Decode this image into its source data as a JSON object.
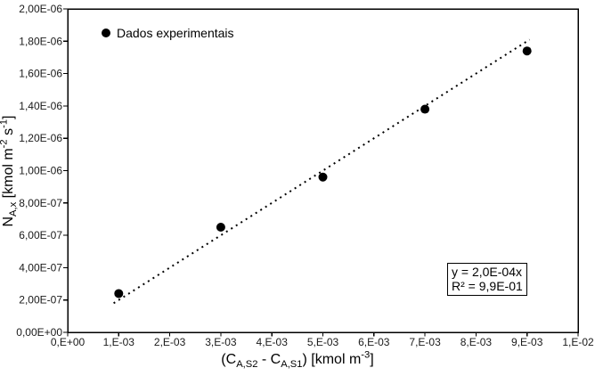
{
  "chart_data": {
    "type": "scatter",
    "title": "",
    "grid": false,
    "legend_position": "top-left-inside",
    "xlim": [
      0,
      0.01
    ],
    "ylim": [
      0,
      2e-06
    ],
    "x_tick_values": [
      0,
      0.001,
      0.002,
      0.003,
      0.004,
      0.005,
      0.006,
      0.007,
      0.008,
      0.009,
      0.01
    ],
    "x_tick_labels": [
      "0,E+00",
      "1,E-03",
      "2,E-03",
      "3,E-03",
      "4,E-03",
      "5,E-03",
      "6,E-03",
      "7,E-03",
      "8,E-03",
      "9,E-03",
      "1,E-02"
    ],
    "y_tick_values": [
      0,
      2e-07,
      4e-07,
      6e-07,
      8e-07,
      1e-06,
      1.2e-06,
      1.4e-06,
      1.6e-06,
      1.8e-06,
      2e-06
    ],
    "y_tick_labels": [
      "0,00E+00",
      "2,00E-07",
      "4,00E-07",
      "6,00E-07",
      "8,00E-07",
      "1,00E-06",
      "1,20E-06",
      "1,40E-06",
      "1,60E-06",
      "1,80E-06",
      "2,00E-06"
    ],
    "series": [
      {
        "name": "Dados experimentais",
        "marker": "filled-circle",
        "color": "#000000",
        "points": [
          {
            "x": 0.001,
            "y": 2.4e-07
          },
          {
            "x": 0.003,
            "y": 6.5e-07
          },
          {
            "x": 0.005,
            "y": 9.6e-07
          },
          {
            "x": 0.007,
            "y": 1.38e-06
          },
          {
            "x": 0.009,
            "y": 1.74e-06
          }
        ]
      }
    ],
    "trendline": {
      "style": "dotted",
      "color": "#000000",
      "slope": 0.0002,
      "intercept": 0,
      "x_start": 0.0009,
      "x_end": 0.00905
    },
    "annotation": {
      "equation": "y = 2,0E-04x",
      "r2": "R² = 9,9E-01"
    },
    "xlabel_rich": [
      {
        "text": "(C"
      },
      {
        "text": "A,S2",
        "style": "sub"
      },
      {
        "text": " - C"
      },
      {
        "text": "A,S1",
        "style": "sub"
      },
      {
        "text": ") [kmol m"
      },
      {
        "text": "-3",
        "style": "sup"
      },
      {
        "text": "]"
      }
    ],
    "ylabel_rich": [
      {
        "text": "N"
      },
      {
        "text": "A,x",
        "style": "sub"
      },
      {
        "text": " [kmol m"
      },
      {
        "text": "-2",
        "style": "sup"
      },
      {
        "text": " s"
      },
      {
        "text": "-1",
        "style": "sup"
      },
      {
        "text": "]"
      }
    ],
    "colors": {
      "marker": "#000000",
      "trendline": "#000000",
      "frame": "#000000",
      "text": "#1a1a1a",
      "background": "#ffffff"
    }
  }
}
